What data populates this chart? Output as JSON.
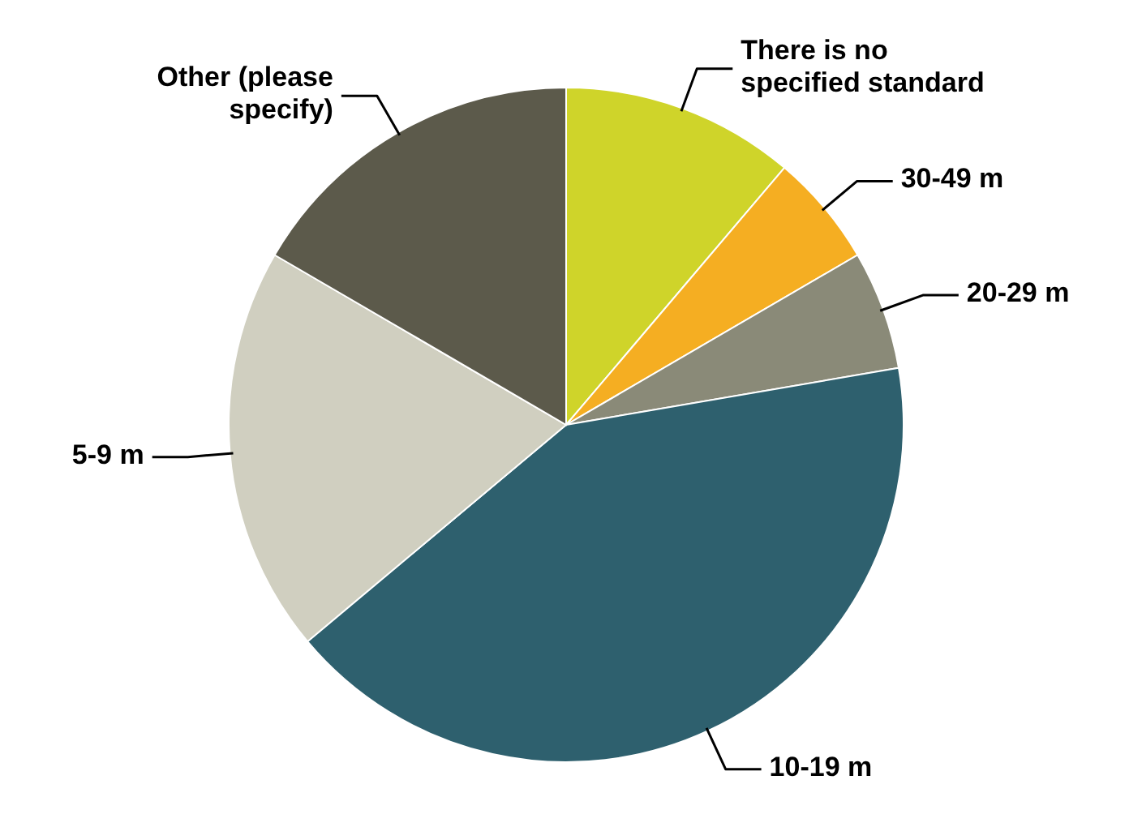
{
  "chart_data": {
    "type": "pie",
    "categories": [
      "There is no specified standard",
      "30-49 m",
      "20-29 m",
      "10-19 m",
      "5-9 m",
      "Other (please specify)"
    ],
    "values": [
      11.2,
      5.4,
      5.7,
      41.6,
      19.5,
      16.6
    ],
    "colors": [
      "#cfd42a",
      "#f5ae22",
      "#8a8a78",
      "#2e606e",
      "#d0cfc0",
      "#5c5a4b"
    ]
  }
}
